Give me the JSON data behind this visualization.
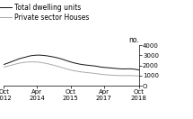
{
  "title": "",
  "ylabel": "no.",
  "ylim": [
    0,
    4000
  ],
  "yticks": [
    0,
    1000,
    2000,
    3000,
    4000
  ],
  "ytick_labels": [
    "O",
    "1000",
    "2000",
    "3000",
    "4000"
  ],
  "legend_labels": [
    "Total dwelling units",
    "Private sector Houses"
  ],
  "line_colors": [
    "#111111",
    "#aaaaaa"
  ],
  "background_color": "#ffffff",
  "x_tick_labels": [
    "Oct\n2012",
    "Apr\n2014",
    "Oct\n2015",
    "Apr\n2017",
    "Oct\n2018"
  ],
  "total_dwelling": [
    2100,
    2160,
    2220,
    2290,
    2360,
    2430,
    2500,
    2570,
    2640,
    2700,
    2745,
    2790,
    2840,
    2890,
    2940,
    2970,
    2990,
    3010,
    3020,
    3020,
    3015,
    3000,
    2980,
    2960,
    2930,
    2900,
    2870,
    2830,
    2790,
    2750,
    2700,
    2650,
    2590,
    2530,
    2470,
    2410,
    2350,
    2300,
    2250,
    2210,
    2170,
    2130,
    2100,
    2070,
    2050,
    2030,
    2010,
    1990,
    1970,
    1950,
    1920,
    1890,
    1860,
    1830,
    1810,
    1795,
    1780,
    1765,
    1750,
    1730,
    1710,
    1695,
    1680,
    1670,
    1660,
    1660,
    1660,
    1665,
    1670,
    1660,
    1645,
    1620,
    1590,
    1560
  ],
  "private_sector": [
    1840,
    1880,
    1920,
    1970,
    2020,
    2070,
    2120,
    2170,
    2210,
    2250,
    2280,
    2305,
    2325,
    2340,
    2350,
    2355,
    2355,
    2345,
    2335,
    2315,
    2290,
    2260,
    2230,
    2195,
    2155,
    2115,
    2070,
    2020,
    1970,
    1920,
    1870,
    1815,
    1760,
    1705,
    1650,
    1600,
    1550,
    1510,
    1475,
    1445,
    1415,
    1385,
    1360,
    1335,
    1315,
    1295,
    1275,
    1255,
    1235,
    1215,
    1190,
    1165,
    1140,
    1118,
    1100,
    1085,
    1070,
    1055,
    1045,
    1035,
    1025,
    1015,
    1008,
    1000,
    995,
    998,
    1000,
    1003,
    1005,
    998,
    990,
    982,
    975,
    968
  ],
  "n_points": 74,
  "x_tick_positions": [
    0,
    18,
    36,
    54,
    73
  ]
}
